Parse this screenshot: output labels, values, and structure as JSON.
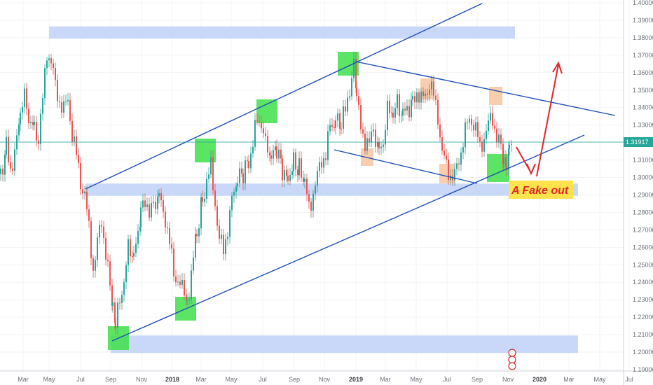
{
  "chart_data": {
    "type": "candlestick",
    "symbol_note": "",
    "current_price_label": "1.31917",
    "y_ticks": [
      "1.40000",
      "1.39000",
      "1.38000",
      "1.37000",
      "1.36000",
      "1.35000",
      "1.34000",
      "1.33000",
      "1.32000",
      "1.31000",
      "1.30000",
      "1.29000",
      "1.28000",
      "1.27000",
      "1.26000",
      "1.25000",
      "1.24000",
      "1.23000",
      "1.22000",
      "1.21000",
      "1.20000",
      "1.19000"
    ],
    "x_ticks": [
      "Mar",
      "May",
      "Jul",
      "Sep",
      "Nov",
      "2018",
      "Mar",
      "May",
      "Jul",
      "Sep",
      "Nov",
      "2019",
      "Mar",
      "May",
      "Jul",
      "Sep",
      "Nov",
      "2020",
      "Mar",
      "May",
      "Jul"
    ],
    "x_bold_ticks": [
      "2018",
      "2019",
      "2020"
    ],
    "annotation": "A Fake out",
    "zones": [
      {
        "name": "resistance-zone-top",
        "from": 1.3795,
        "to": 1.3865
      },
      {
        "name": "support-zone-middle",
        "from": 1.2895,
        "to": 1.2965
      },
      {
        "name": "support-zone-bottom",
        "from": 1.1995,
        "to": 1.2095
      }
    ],
    "candles_price_path": [
      [
        0,
        1.302
      ],
      [
        8,
        1.318
      ],
      [
        14,
        1.306
      ],
      [
        20,
        1.312
      ],
      [
        28,
        1.336
      ],
      [
        34,
        1.345
      ],
      [
        40,
        1.335
      ],
      [
        48,
        1.33
      ],
      [
        54,
        1.322
      ],
      [
        60,
        1.344
      ],
      [
        66,
        1.373
      ],
      [
        72,
        1.366
      ],
      [
        78,
        1.352
      ],
      [
        84,
        1.344
      ],
      [
        90,
        1.338
      ],
      [
        96,
        1.345
      ],
      [
        102,
        1.325
      ],
      [
        108,
        1.312
      ],
      [
        114,
        1.298
      ],
      [
        120,
        1.29
      ],
      [
        126,
        1.27
      ],
      [
        132,
        1.248
      ],
      [
        138,
        1.262
      ],
      [
        144,
        1.275
      ],
      [
        150,
        1.258
      ],
      [
        156,
        1.236
      ],
      [
        160,
        1.222
      ],
      [
        164,
        1.214
      ],
      [
        170,
        1.23
      ],
      [
        176,
        1.242
      ],
      [
        182,
        1.258
      ],
      [
        190,
        1.254
      ],
      [
        196,
        1.266
      ],
      [
        200,
        1.282
      ],
      [
        206,
        1.29
      ],
      [
        212,
        1.276
      ],
      [
        218,
        1.286
      ],
      [
        226,
        1.29
      ],
      [
        232,
        1.284
      ],
      [
        238,
        1.266
      ],
      [
        244,
        1.256
      ],
      [
        250,
        1.242
      ],
      [
        256,
        1.236
      ],
      [
        262,
        1.238
      ],
      [
        266,
        1.228
      ],
      [
        272,
        1.246
      ],
      [
        280,
        1.268
      ],
      [
        288,
        1.288
      ],
      [
        294,
        1.298
      ],
      [
        300,
        1.305
      ],
      [
        306,
        1.286
      ],
      [
        312,
        1.264
      ],
      [
        318,
        1.258
      ],
      [
        324,
        1.272
      ],
      [
        330,
        1.286
      ],
      [
        338,
        1.298
      ],
      [
        346,
        1.302
      ],
      [
        354,
        1.31
      ],
      [
        360,
        1.318
      ],
      [
        366,
        1.334
      ],
      [
        372,
        1.332
      ],
      [
        378,
        1.318
      ],
      [
        386,
        1.31
      ],
      [
        394,
        1.316
      ],
      [
        402,
        1.305
      ],
      [
        410,
        1.3
      ],
      [
        418,
        1.31
      ],
      [
        426,
        1.304
      ],
      [
        434,
        1.296
      ],
      [
        440,
        1.282
      ],
      [
        446,
        1.292
      ],
      [
        452,
        1.3
      ],
      [
        458,
        1.31
      ],
      [
        464,
        1.314
      ],
      [
        470,
        1.328
      ],
      [
        478,
        1.332
      ],
      [
        486,
        1.33
      ],
      [
        492,
        1.338
      ],
      [
        498,
        1.352
      ],
      [
        504,
        1.364
      ],
      [
        508,
        1.345
      ],
      [
        514,
        1.328
      ],
      [
        520,
        1.322
      ],
      [
        526,
        1.318
      ],
      [
        532,
        1.328
      ],
      [
        540,
        1.316
      ],
      [
        546,
        1.322
      ],
      [
        552,
        1.338
      ],
      [
        560,
        1.334
      ],
      [
        566,
        1.342
      ],
      [
        574,
        1.335
      ],
      [
        580,
        1.34
      ],
      [
        588,
        1.344
      ],
      [
        594,
        1.35
      ],
      [
        600,
        1.343
      ],
      [
        606,
        1.348
      ],
      [
        612,
        1.354
      ],
      [
        618,
        1.346
      ],
      [
        624,
        1.336
      ],
      [
        630,
        1.314
      ],
      [
        636,
        1.306
      ],
      [
        642,
        1.302
      ],
      [
        648,
        1.3
      ],
      [
        654,
        1.31
      ],
      [
        660,
        1.322
      ],
      [
        666,
        1.33
      ],
      [
        672,
        1.334
      ],
      [
        678,
        1.328
      ],
      [
        684,
        1.316
      ],
      [
        690,
        1.324
      ],
      [
        696,
        1.33
      ],
      [
        702,
        1.334
      ],
      [
        708,
        1.324
      ],
      [
        714,
        1.316
      ],
      [
        718,
        1.306
      ],
      [
        722,
        1.304
      ],
      [
        726,
        1.314
      ],
      [
        730,
        1.319
      ]
    ]
  }
}
